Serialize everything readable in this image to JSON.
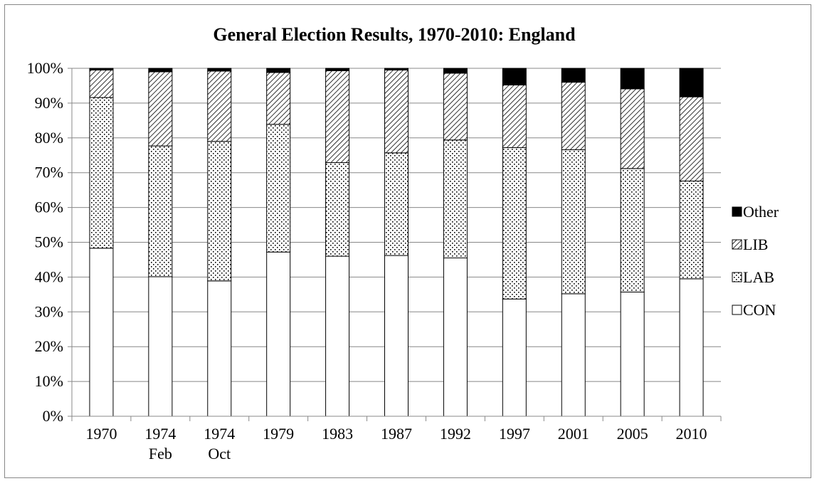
{
  "chart_data": {
    "type": "bar",
    "stacked": true,
    "percent": true,
    "title": "General Election Results, 1970-2010: England",
    "xlabel": "",
    "ylabel": "",
    "categories": [
      [
        "1970"
      ],
      [
        "1974",
        "Feb"
      ],
      [
        "1974",
        "Oct"
      ],
      [
        "1979"
      ],
      [
        "1983"
      ],
      [
        "1987"
      ],
      [
        "1992"
      ],
      [
        "1997"
      ],
      [
        "2001"
      ],
      [
        "2005"
      ],
      [
        "2010"
      ]
    ],
    "ylim": [
      0,
      100
    ],
    "yticks": [
      "0%",
      "10%",
      "20%",
      "30%",
      "40%",
      "50%",
      "60%",
      "70%",
      "80%",
      "90%",
      "100%"
    ],
    "grid": true,
    "legend_position": "right",
    "series": [
      {
        "name": "CON",
        "pattern": "white",
        "values": [
          48.3,
          40.1,
          38.9,
          47.2,
          46.0,
          46.2,
          45.5,
          33.7,
          35.2,
          35.7,
          39.5
        ]
      },
      {
        "name": "LAB",
        "pattern": "dots",
        "values": [
          43.3,
          37.6,
          40.1,
          36.7,
          26.9,
          29.5,
          33.9,
          43.5,
          41.4,
          35.5,
          28.1
        ]
      },
      {
        "name": "LIB",
        "pattern": "hatch",
        "values": [
          7.9,
          21.3,
          20.2,
          14.9,
          26.4,
          23.8,
          19.2,
          18.0,
          19.4,
          22.9,
          24.2
        ]
      },
      {
        "name": "Other",
        "pattern": "black",
        "values": [
          0.5,
          1.0,
          0.8,
          1.2,
          0.7,
          0.5,
          1.4,
          4.8,
          4.0,
          5.9,
          8.2
        ]
      }
    ],
    "legend_order": [
      "Other",
      "LIB",
      "LAB",
      "CON"
    ],
    "colors": {
      "axis": "#888888",
      "grid": "#888888",
      "bar_stroke": "#000000",
      "fill_black": "#000000",
      "fill_white": "#ffffff"
    }
  }
}
